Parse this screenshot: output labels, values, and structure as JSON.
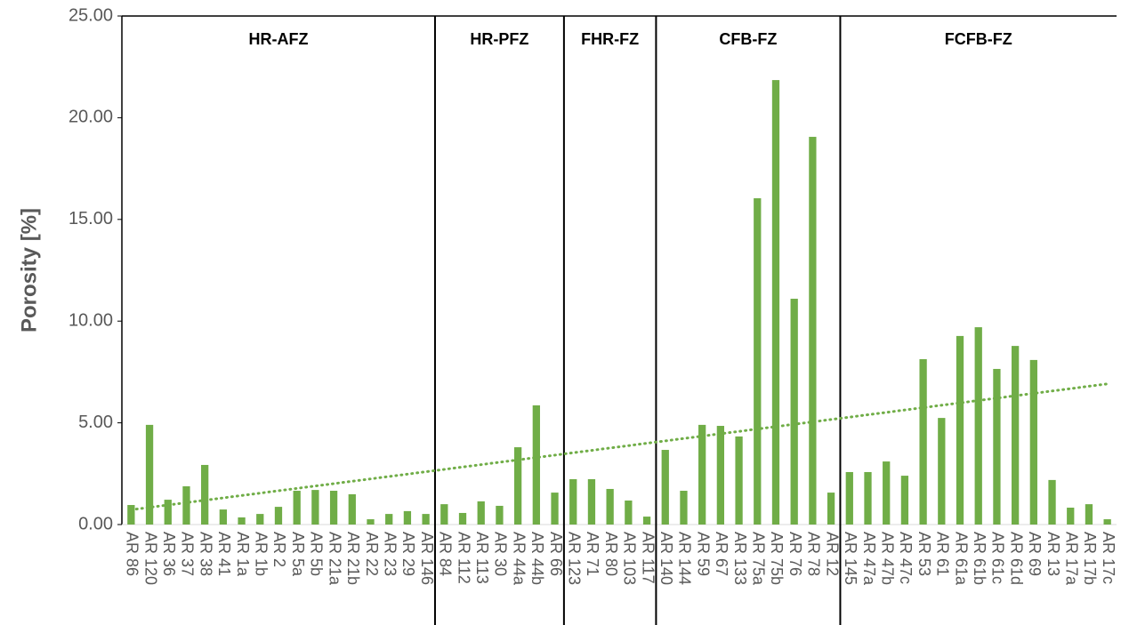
{
  "chart_data": {
    "type": "bar",
    "y_label": "Porosity [%]",
    "color": "#70ad47",
    "ylim": [
      0,
      25
    ],
    "yticks": [
      {
        "value": 0,
        "label": "0.00"
      },
      {
        "value": 5,
        "label": "5.00"
      },
      {
        "value": 10,
        "label": "10.00"
      },
      {
        "value": 15,
        "label": "15.00"
      },
      {
        "value": 20,
        "label": "20.00"
      },
      {
        "value": 25,
        "label": "25.00"
      }
    ],
    "trendline": "linear",
    "groups": [
      {
        "name": "HR-AFZ",
        "categories": [
          "AR 86",
          "AR 120",
          "AR 36",
          "AR 37",
          "AR 38",
          "AR 41",
          "AR 1a",
          "AR 1b",
          "AR 2",
          "AR 5a",
          "AR 5b",
          "AR 21a",
          "AR 21b",
          "AR 22",
          "AR 23",
          "AR 29",
          "AR 146"
        ],
        "values": [
          0.96,
          4.9,
          1.22,
          1.88,
          2.93,
          0.74,
          0.35,
          0.52,
          0.87,
          1.66,
          1.7,
          1.66,
          1.49,
          0.26,
          0.52,
          0.66,
          0.52
        ]
      },
      {
        "name": "HR-PFZ",
        "categories": [
          "AR 84",
          "AR 112",
          "AR 113",
          "AR 30",
          "AR 44a",
          "AR 44b",
          "AR 66"
        ],
        "values": [
          1.0,
          0.57,
          1.14,
          0.92,
          3.8,
          5.86,
          1.57
        ]
      },
      {
        "name": "FHR-FZ",
        "categories": [
          "AR 123",
          "AR 71",
          "AR 80",
          "AR 103",
          "AR 117"
        ],
        "values": [
          2.23,
          2.23,
          1.75,
          1.18,
          0.39
        ]
      },
      {
        "name": "CFB-FZ",
        "categories": [
          "AR 140",
          "AR 144",
          "AR 59",
          "AR 67",
          "AR 133",
          "AR 75a",
          "AR 75b",
          "AR 76",
          "AR 78",
          "AR 12"
        ],
        "values": [
          3.67,
          1.66,
          4.9,
          4.85,
          4.33,
          16.04,
          21.85,
          11.1,
          19.06,
          1.57
        ]
      },
      {
        "name": "FCFB-FZ",
        "categories": [
          "AR 145",
          "AR 47a",
          "AR 47b",
          "AR 47c",
          "AR 53",
          "AR 61",
          "AR 61a",
          "AR 61b",
          "AR 61c",
          "AR 61d",
          "AR 69",
          "AR 13",
          "AR 17a",
          "AR 17b",
          "AR 17c"
        ],
        "values": [
          2.58,
          2.58,
          3.1,
          2.4,
          8.13,
          5.24,
          9.27,
          9.7,
          7.65,
          8.78,
          8.09,
          2.19,
          0.83,
          1.0,
          0.26
        ]
      }
    ]
  }
}
